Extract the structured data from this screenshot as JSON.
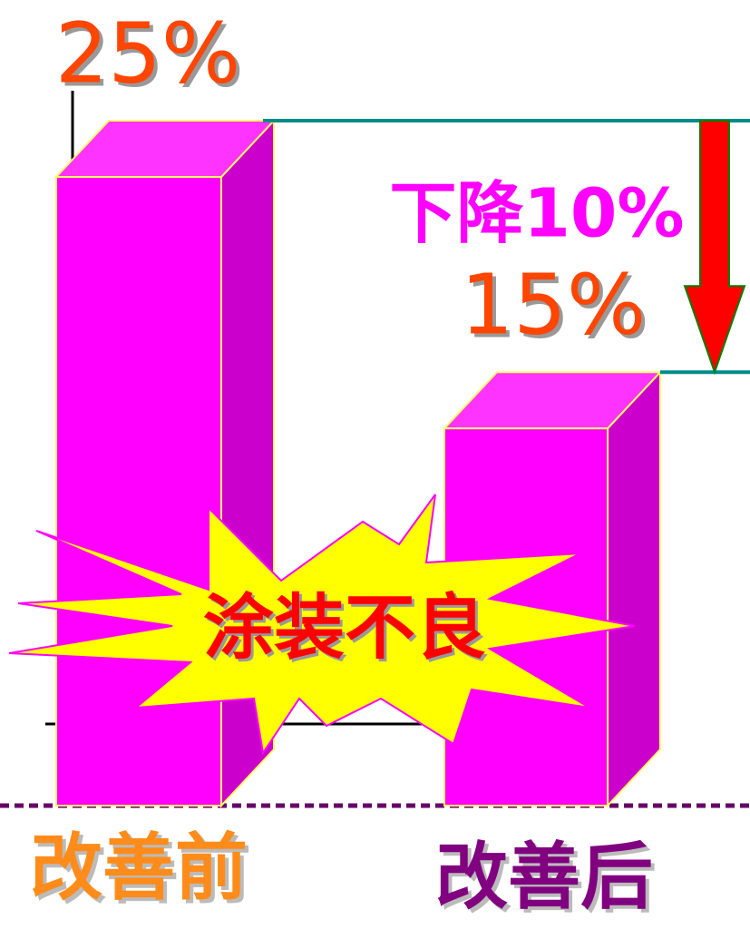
{
  "chart_data": {
    "type": "bar3d",
    "categories": [
      "改善前",
      "改善后"
    ],
    "values": [
      25,
      15
    ],
    "value_labels": [
      "25%",
      "15%"
    ],
    "color": "#ff00ff",
    "category_colors": [
      "#ff8c1a",
      "#800080"
    ],
    "annotations": [
      "下降10%",
      "涂装不良"
    ]
  }
}
